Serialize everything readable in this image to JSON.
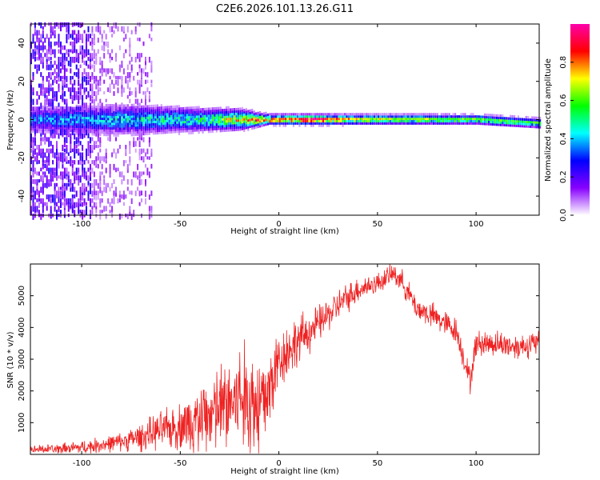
{
  "title": "C2E6.2026.101.13.26.G11",
  "chart_data": [
    {
      "type": "heatmap",
      "xlabel": "Height of straight line (km)",
      "ylabel": "Frequency (Hz)",
      "xlim": [
        -126,
        132
      ],
      "ylim": [
        -50,
        50
      ],
      "xticks": [
        -100,
        -50,
        0,
        50,
        100
      ],
      "xtick_labels": [
        "-100",
        "-50",
        "0",
        "50",
        "100"
      ],
      "yticks": [
        -40,
        -20,
        0,
        20,
        40
      ],
      "ytick_labels": [
        "-40",
        "-20",
        "0",
        "20",
        "40"
      ],
      "colorbar": {
        "label": "Normalized spectral amplitude",
        "range": [
          0,
          1
        ],
        "ticks": [
          0.0,
          0.2,
          0.4,
          0.6,
          0.8
        ],
        "tick_labels": [
          "0.0",
          "0.2",
          "0.4",
          "0.6",
          "0.8"
        ],
        "colormap": [
          "#ffffff",
          "#8800ff",
          "#0000ff",
          "#00ffff",
          "#00ff00",
          "#ffff00",
          "#ff0000",
          "#ff00aa"
        ]
      },
      "band_center_hz": [
        [
          -126,
          0
        ],
        [
          -50,
          0
        ],
        [
          0,
          0
        ],
        [
          50,
          0
        ],
        [
          100,
          0
        ],
        [
          132,
          -2
        ]
      ],
      "band_halfwidth_hz": [
        [
          -126,
          5
        ],
        [
          -80,
          6
        ],
        [
          -50,
          5
        ],
        [
          -20,
          4
        ],
        [
          -5,
          2
        ],
        [
          20,
          2
        ],
        [
          132,
          2
        ]
      ],
      "band_peak_amplitude": [
        [
          -126,
          0.35
        ],
        [
          -80,
          0.45
        ],
        [
          -40,
          0.5
        ],
        [
          -20,
          0.75
        ],
        [
          0,
          0.85
        ],
        [
          20,
          0.95
        ],
        [
          40,
          0.7
        ],
        [
          132,
          0.55
        ]
      ],
      "noise_extent_km": [
        -126,
        -65
      ],
      "grid": false
    },
    {
      "type": "line",
      "xlabel": "Height of straight line (km)",
      "ylabel": "SNR (10 * v/v)",
      "xlim": [
        -126,
        132
      ],
      "ylim": [
        0,
        6000
      ],
      "xticks": [
        -100,
        -50,
        0,
        50,
        100
      ],
      "xtick_labels": [
        "-100",
        "-50",
        "0",
        "50",
        "100"
      ],
      "yticks": [
        1000,
        2000,
        3000,
        4000,
        5000
      ],
      "ytick_labels": [
        "1000",
        "2000",
        "3000",
        "4000",
        "5000"
      ],
      "series": [
        {
          "color": "#ee2222",
          "trend": [
            [
              -126,
              150
            ],
            [
              -110,
              180
            ],
            [
              -100,
              220
            ],
            [
              -90,
              300
            ],
            [
              -80,
              400
            ],
            [
              -70,
              550
            ],
            [
              -60,
              750
            ],
            [
              -50,
              900
            ],
            [
              -40,
              1100
            ],
            [
              -30,
              1400
            ],
            [
              -20,
              1800
            ],
            [
              -10,
              1500
            ],
            [
              -5,
              2000
            ],
            [
              0,
              3000
            ],
            [
              10,
              3600
            ],
            [
              20,
              4100
            ],
            [
              30,
              4700
            ],
            [
              40,
              5200
            ],
            [
              50,
              5400
            ],
            [
              58,
              5700
            ],
            [
              62,
              5500
            ],
            [
              70,
              4600
            ],
            [
              80,
              4300
            ],
            [
              90,
              3900
            ],
            [
              97,
              2300
            ],
            [
              100,
              3500
            ],
            [
              110,
              3500
            ],
            [
              120,
              3400
            ],
            [
              132,
              3500
            ]
          ],
          "noise_amplitude": [
            [
              -126,
              150
            ],
            [
              -80,
              350
            ],
            [
              -50,
              900
            ],
            [
              -25,
              2000
            ],
            [
              -10,
              2400
            ],
            [
              0,
              1200
            ],
            [
              20,
              700
            ],
            [
              50,
              400
            ],
            [
              80,
              500
            ],
            [
              132,
              500
            ]
          ]
        }
      ],
      "grid": false
    }
  ]
}
